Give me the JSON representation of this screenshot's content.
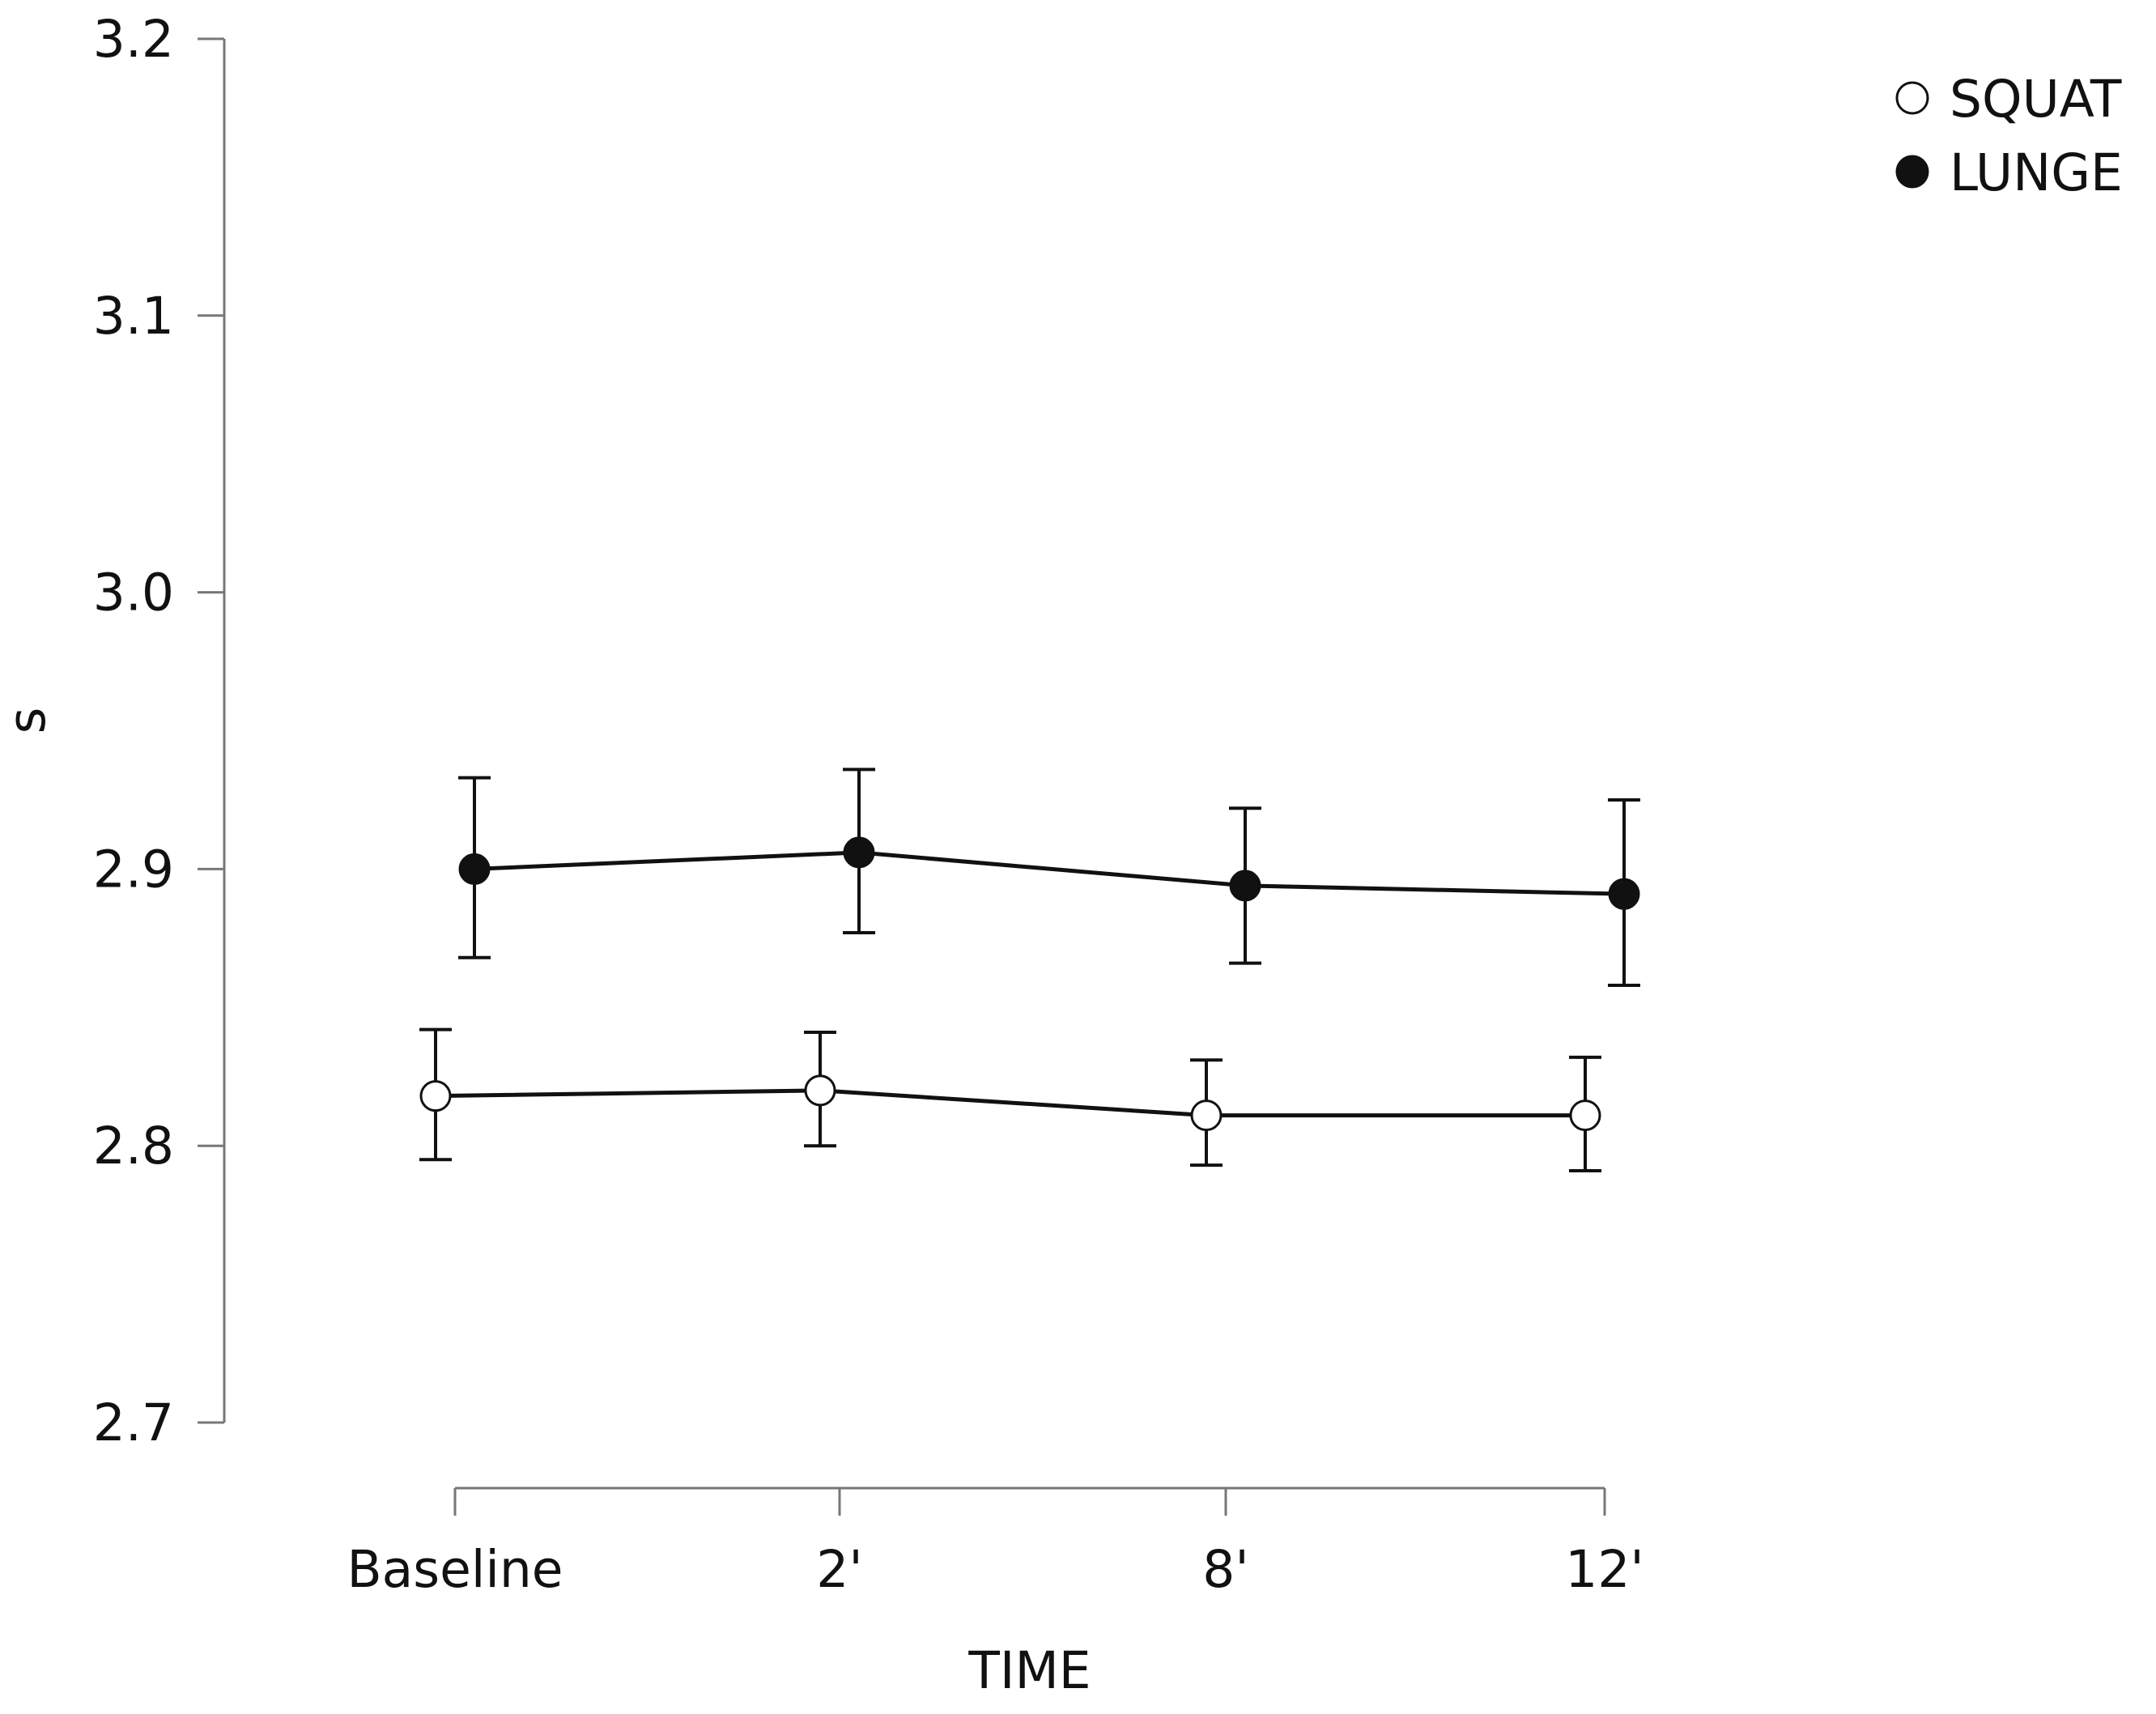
{
  "chart_data": {
    "type": "line",
    "title": "",
    "xlabel": "TIME",
    "ylabel": "s",
    "categories": [
      "Baseline",
      "2'",
      "8'",
      "12'"
    ],
    "ylim": [
      2.7,
      3.2
    ],
    "yticks": [
      "2.7",
      "2.8",
      "2.9",
      "3.0",
      "3.1",
      "3.2"
    ],
    "legend_position": "top-right",
    "grid": false,
    "series": [
      {
        "name": "SQUAT",
        "marker": "open-circle",
        "values": [
          2.818,
          2.82,
          2.811,
          2.811
        ],
        "error_low": [
          2.795,
          2.8,
          2.793,
          2.791
        ],
        "error_high": [
          2.842,
          2.841,
          2.831,
          2.832
        ]
      },
      {
        "name": "LUNGE",
        "marker": "filled-circle",
        "values": [
          2.9,
          2.906,
          2.894,
          2.891
        ],
        "error_low": [
          2.868,
          2.877,
          2.866,
          2.858
        ],
        "error_high": [
          2.933,
          2.936,
          2.922,
          2.925
        ]
      }
    ]
  }
}
